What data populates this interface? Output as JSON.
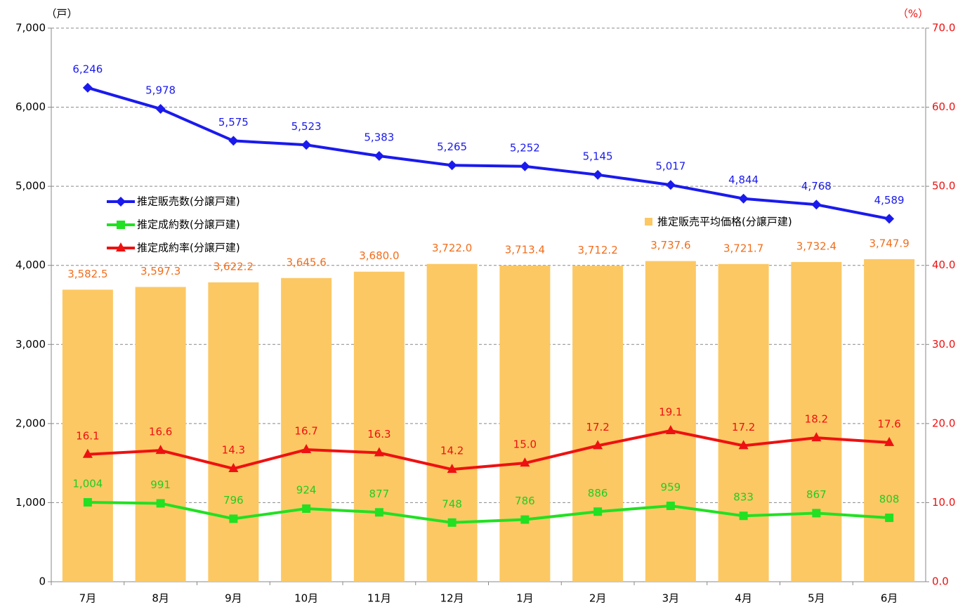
{
  "chart_data": {
    "type": "combo",
    "categories": [
      "7月",
      "8月",
      "9月",
      "10月",
      "11月",
      "12月",
      "1月",
      "2月",
      "3月",
      "4月",
      "5月",
      "6月"
    ],
    "y_label": "（戸）",
    "y2_label": "（%）",
    "ylim": [
      0,
      7000
    ],
    "yticks": [
      {
        "value": 0,
        "label": "0"
      },
      {
        "value": 1000,
        "label": "1,000"
      },
      {
        "value": 2000,
        "label": "2,000"
      },
      {
        "value": 3000,
        "label": "3,000"
      },
      {
        "value": 4000,
        "label": "4,000"
      },
      {
        "value": 5000,
        "label": "5,000"
      },
      {
        "value": 6000,
        "label": "6,000"
      },
      {
        "value": 7000,
        "label": "7,000"
      }
    ],
    "y2lim": [
      0,
      70
    ],
    "y2ticks": [
      {
        "value": 0,
        "label": "0.0"
      },
      {
        "value": 10,
        "label": "10.0"
      },
      {
        "value": 20,
        "label": "20.0"
      },
      {
        "value": 30,
        "label": "30.0"
      },
      {
        "value": 40,
        "label": "40.0"
      },
      {
        "value": 50,
        "label": "50.0"
      },
      {
        "value": 60,
        "label": "60.0"
      },
      {
        "value": 70,
        "label": "70.0"
      }
    ],
    "y3lim": [
      2000,
      5000
    ],
    "grid": true,
    "series": [
      {
        "name": "推定販売平均価格(分譲戸建)",
        "kind": "bar",
        "axis": "y3",
        "color": "#fcc864",
        "label_color": "#f26d1b",
        "values": [
          3582.5,
          3597.3,
          3622.2,
          3645.6,
          3680.0,
          3722.0,
          3713.4,
          3712.2,
          3737.6,
          3721.7,
          3732.4,
          3747.9
        ],
        "value_labels": [
          "3,582.5",
          "3,597.3",
          "3,622.2",
          "3,645.6",
          "3,680.0",
          "3,722.0",
          "3,713.4",
          "3,712.2",
          "3,737.6",
          "3,721.7",
          "3,732.4",
          "3,747.9"
        ]
      },
      {
        "name": "推定販売数(分譲戸建)",
        "kind": "line",
        "marker": "diamond",
        "color": "#1a1aee",
        "label_color": "#1a1aee",
        "values": [
          6246,
          5978,
          5575,
          5523,
          5383,
          5265,
          5252,
          5145,
          5017,
          4844,
          4768,
          4589
        ],
        "value_labels": [
          "6,246",
          "5,978",
          "5,575",
          "5,523",
          "5,383",
          "5,265",
          "5,252",
          "5,145",
          "5,017",
          "4,844",
          "4,768",
          "4,589"
        ]
      },
      {
        "name": "推定成約数(分譲戸建)",
        "kind": "line",
        "marker": "square",
        "color": "#22e022",
        "label_color": "#22cc22",
        "values": [
          1004,
          991,
          796,
          924,
          877,
          748,
          786,
          886,
          959,
          833,
          867,
          808
        ],
        "value_labels": [
          "1,004",
          "991",
          "796",
          "924",
          "877",
          "748",
          "786",
          "886",
          "959",
          "833",
          "867",
          "808"
        ]
      },
      {
        "name": "推定成約率(分譲戸建)",
        "kind": "line",
        "marker": "triangle",
        "axis": "y2",
        "color": "#ee1111",
        "label_color": "#ee1111",
        "values": [
          16.1,
          16.6,
          14.3,
          16.7,
          16.3,
          14.2,
          15.0,
          17.2,
          19.1,
          17.2,
          18.2,
          17.6
        ],
        "value_labels": [
          "16.1",
          "16.6",
          "14.3",
          "16.7",
          "16.3",
          "14.2",
          "15.0",
          "17.2",
          "19.1",
          "17.2",
          "18.2",
          "17.6"
        ]
      }
    ]
  }
}
